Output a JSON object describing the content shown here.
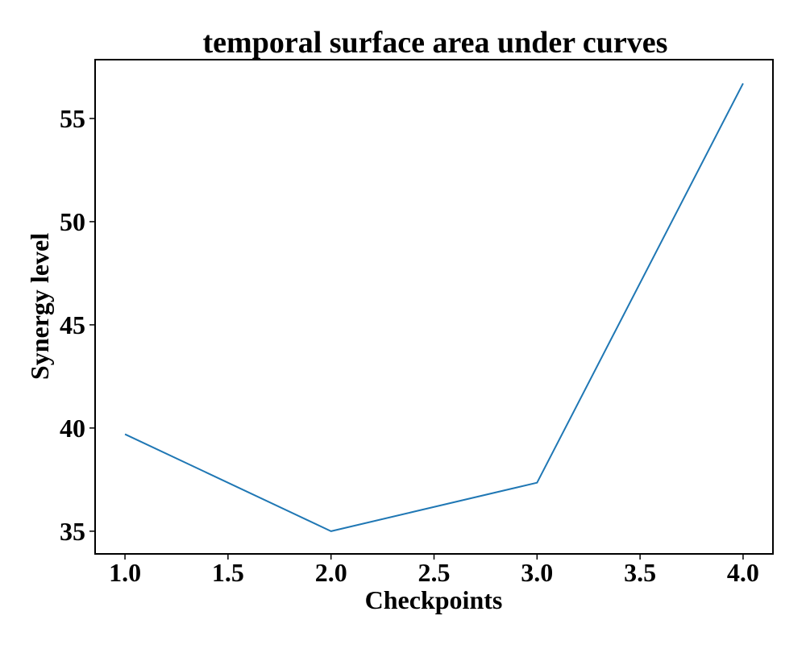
{
  "chart_data": {
    "type": "line",
    "title": "temporal surface area under curves",
    "xlabel": "Checkpoints",
    "ylabel": "Synergy level",
    "xlim": [
      0.855,
      4.145
    ],
    "ylim": [
      33.9,
      57.85
    ],
    "xticks": [
      1.0,
      1.5,
      2.0,
      2.5,
      3.0,
      3.5,
      4.0
    ],
    "xtick_labels": [
      "1.0",
      "1.5",
      "2.0",
      "2.5",
      "3.0",
      "3.5",
      "4.0"
    ],
    "yticks": [
      35,
      40,
      45,
      50,
      55
    ],
    "ytick_labels": [
      "35",
      "40",
      "45",
      "50",
      "55"
    ],
    "grid": false,
    "series": [
      {
        "color": "#1f77b4",
        "x": [
          1.0,
          2.0,
          3.0,
          4.0
        ],
        "y": [
          39.7,
          35.0,
          37.35,
          56.7
        ]
      }
    ]
  }
}
